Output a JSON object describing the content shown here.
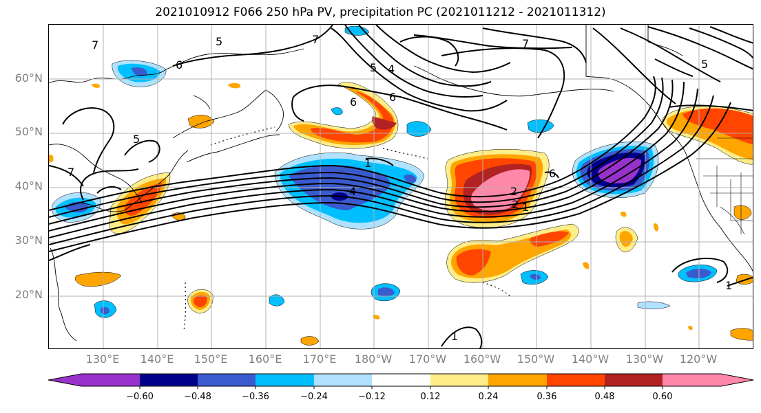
{
  "title": "2021010912 F066 250 hPa PV, precipitation PC (2021011212 - 2021011312)",
  "map": {
    "lat_labels": [
      "60°N",
      "50°N",
      "40°N",
      "30°N",
      "20°N"
    ],
    "lon_labels": [
      "130°E",
      "140°E",
      "150°E",
      "160°E",
      "170°E",
      "180°W",
      "170°W",
      "160°W",
      "150°W",
      "140°W",
      "130°W",
      "120°W"
    ],
    "contour_labels": [
      "7",
      "5",
      "6",
      "7",
      "5",
      "4",
      "6",
      "6",
      "7",
      "5",
      "5",
      "7",
      "4",
      "6",
      "2",
      "2",
      "1",
      "1",
      "1",
      "1"
    ]
  },
  "colorbar": {
    "ticks": [
      "−0.60",
      "−0.48",
      "−0.36",
      "−0.24",
      "−0.12",
      "0.12",
      "0.24",
      "0.36",
      "0.48",
      "0.60"
    ],
    "colors": [
      "#9932cc",
      "#00008b",
      "#3a5bcd",
      "#00bfff",
      "#b0e2ff",
      "#ffffff",
      "#ffee88",
      "#ffa500",
      "#ff4500",
      "#b22222",
      "#ff88aa",
      "#ff88aa"
    ]
  }
}
